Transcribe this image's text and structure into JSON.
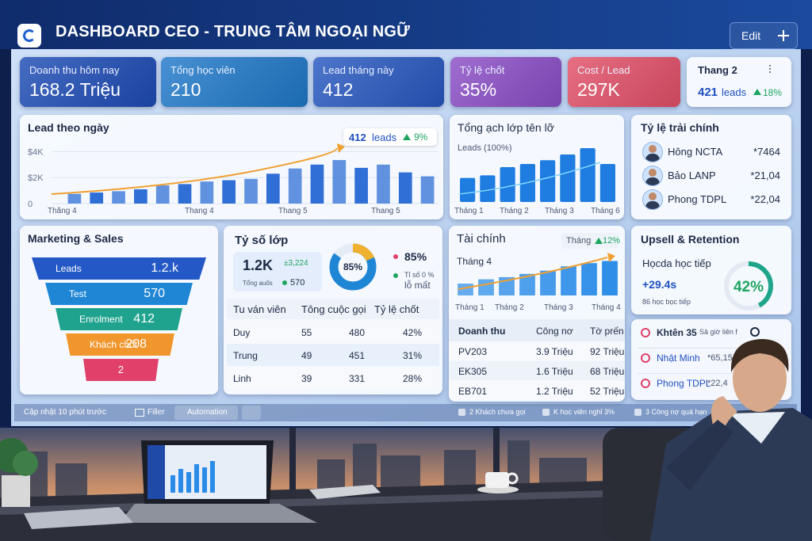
{
  "header": {
    "title": "DASHBOARD CEO - TRUNG TÂM NGOẠI NGỮ",
    "edit": "Edit"
  },
  "kpis": [
    {
      "label": "Doanh thu hôm nay",
      "value": "168.2 Triệu",
      "color": "#1d4bb5"
    },
    {
      "label": "Tổng học viên",
      "value": "210",
      "color": "#1f78c9"
    },
    {
      "label": "Lead tháng này",
      "value": "412",
      "color": "#2757c0"
    },
    {
      "label": "Tỷ lệ chốt",
      "value": "35%",
      "color": "#8a4dc6"
    },
    {
      "label": "Cost / Lead",
      "value": "297K",
      "color": "#e24f68"
    }
  ],
  "month_card": {
    "title": "Thang 2",
    "leads": "421",
    "unit": "leads",
    "change": "18%"
  },
  "lead_chart": {
    "title": "Lead theo ngày",
    "ylim": [
      0,
      5000
    ],
    "yticks": [
      {
        "value": 4000,
        "label": "$4K"
      },
      {
        "value": 2000,
        "label": "$2K"
      },
      0
    ],
    "values": [
      750,
      850,
      950,
      1100,
      1400,
      1500,
      1700,
      1800,
      1900,
      2300,
      2700,
      3000,
      3350,
      2750,
      3000,
      2400,
      2100
    ],
    "color": "#2f6fd6",
    "x_labels": [
      "Thăng 4",
      "Thang 4",
      "Thang 5",
      "Thang 5"
    ],
    "badge": {
      "value": "412",
      "unit": "leads",
      "change": "9%"
    }
  },
  "class_chart": {
    "title": "Tổng ạch lớp tên lỡ",
    "subtitle": "Leads (100%)",
    "ylim": [
      0,
      100
    ],
    "values": [
      38,
      42,
      55,
      60,
      66,
      75,
      85,
      60
    ],
    "color": "#1f7ce0",
    "x_labels": [
      "Tháng 1",
      "Tháng 2",
      "Tháng 3",
      "Tháng 6"
    ]
  },
  "ratio_list": {
    "title": "Tỷ lệ trải chính",
    "rows": [
      {
        "name": "Hông NCTA",
        "value": "*7464"
      },
      {
        "name": "Bảo LANP",
        "value": "*21,04"
      },
      {
        "name": "Phong TDPL",
        "value": "*22,04"
      }
    ]
  },
  "funnel": {
    "title": "Marketing & Sales",
    "stages": [
      {
        "label": "Leads",
        "value": "1.2.k",
        "color": "#2458c6"
      },
      {
        "label": "Test",
        "value": "570",
        "color": "#1f86d6"
      },
      {
        "label": "Enrolment",
        "value": "412",
        "color": "#1fa38e"
      },
      {
        "label": "Khách chốt",
        "value": "208",
        "color": "#f0962c"
      },
      {
        "value": "2",
        "color": "#e0406a"
      }
    ]
  },
  "class_ratio": {
    "title": "Tỷ số lớp",
    "big": "1.2K",
    "delta": "±3,224",
    "sub": "Tổng auốs",
    "sub_value": "570",
    "donut": {
      "value": 85,
      "label": "85%"
    },
    "legend": [
      "85%",
      "Tỉ số 0 %",
      "lỗ mất"
    ],
    "table": {
      "headers": [
        "Tu ván viên",
        "Tông cuộc gọi",
        "Tỷ lệ chốt"
      ],
      "rows": [
        [
          "Duy",
          "55",
          "480",
          "42%"
        ],
        [
          "Trung",
          "49",
          "451",
          "31%"
        ],
        [
          "Linh",
          "39",
          "331",
          "28%"
        ]
      ]
    }
  },
  "finance": {
    "title": "Tài chính",
    "badge": {
      "label": "Tháng",
      "change": "12%"
    },
    "subtitle": "Tháng 4",
    "ylim": [
      0,
      100
    ],
    "values": [
      22,
      30,
      34,
      40,
      46,
      54,
      60,
      64
    ],
    "color": "#2a8ce8",
    "x_labels": [
      "Tháng 1",
      "Tháng 2",
      "Tháng 3",
      "Tháng 4"
    ],
    "table": {
      "headers": [
        "Doanh thu",
        "Công nơ",
        "Tờ prến"
      ],
      "rows": [
        [
          "PV203",
          "3.9 Triệu",
          "92 Triệu"
        ],
        [
          "EK305",
          "1.6 Triệu",
          "68 Triệu"
        ],
        [
          "EB701",
          "1.2 Triệu",
          "52 Triệu"
        ]
      ]
    }
  },
  "upsell": {
    "title": "Upsell & Retention",
    "label": "Họcda học tiếp",
    "value": "+29.4s",
    "sub": "86 học bọc tiếp",
    "ring": {
      "value": 42,
      "label": "42%"
    }
  },
  "alerts": [
    {
      "title": "Khtên 35",
      "note": "Sả giờ liên f"
    },
    {
      "title": "Nhật Minh",
      "note": "*65,15"
    },
    {
      "title": "Phong TDPL",
      "note": "*22,4"
    }
  ],
  "status_bar": {
    "updated": "Cập nhật 10 phút trước",
    "filter": "Filler",
    "automation": "Automation",
    "items": [
      "2 Khách chưa gọi",
      "K học viên nghỉ 3%",
      "3 Công nợ quá hạn"
    ]
  }
}
